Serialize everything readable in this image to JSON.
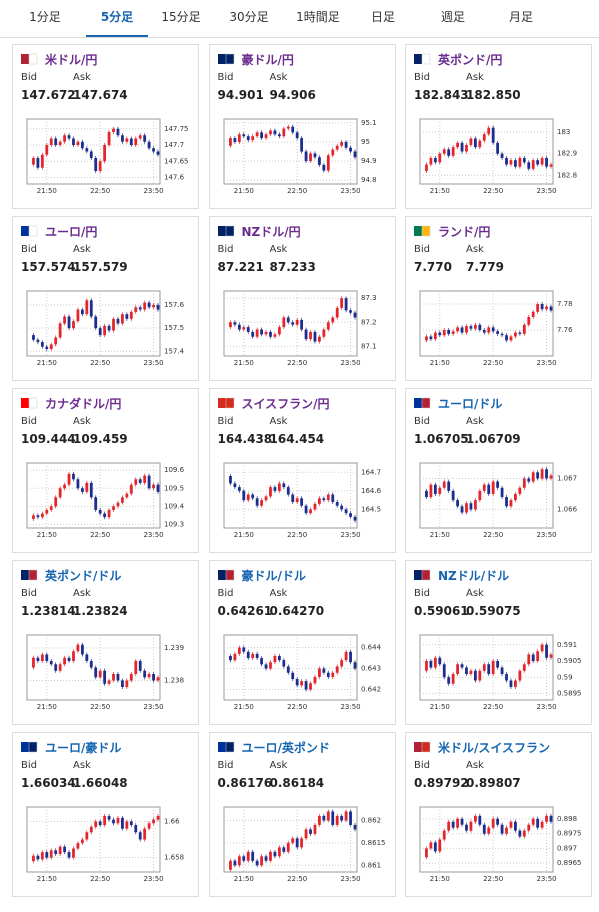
{
  "tabs": {
    "items": [
      "1分足",
      "5分足",
      "15分足",
      "30分足",
      "1時間足",
      "日足",
      "週足",
      "月足"
    ],
    "active": 1
  },
  "labels": {
    "bid": "Bid",
    "ask": "Ask"
  },
  "time_ticks": [
    "21:50",
    "22:50",
    "23:50"
  ],
  "up_color": "#e3262b",
  "down_color": "#1b2d8f",
  "cards": [
    {
      "name": "米ドル/円",
      "color": "#6b2c8f",
      "bid": "147.672",
      "ask": "147.674",
      "chart": {
        "ylim": [
          147.58,
          147.78
        ],
        "yticks": [
          147.6,
          147.65,
          147.7,
          147.75
        ],
        "closes": [
          147.64,
          147.66,
          147.63,
          147.67,
          147.7,
          147.72,
          147.7,
          147.71,
          147.73,
          147.72,
          147.7,
          147.71,
          147.69,
          147.68,
          147.66,
          147.62,
          147.65,
          147.7,
          147.74,
          147.75,
          147.73,
          147.71,
          147.72,
          147.7,
          147.72,
          147.73,
          147.71,
          147.69,
          147.68,
          147.67
        ]
      }
    },
    {
      "name": "豪ドル/円",
      "color": "#6b2c8f",
      "bid": "94.901",
      "ask": "94.906",
      "chart": {
        "ylim": [
          94.78,
          95.12
        ],
        "yticks": [
          94.8,
          94.9,
          95,
          95.1
        ],
        "closes": [
          94.98,
          95.02,
          95.0,
          95.04,
          95.03,
          95.01,
          95.03,
          95.05,
          95.02,
          95.04,
          95.06,
          95.04,
          95.03,
          95.07,
          95.08,
          95.05,
          95.02,
          94.95,
          94.9,
          94.94,
          94.92,
          94.88,
          94.85,
          94.93,
          94.96,
          94.98,
          95.0,
          94.97,
          94.95,
          94.92
        ]
      }
    },
    {
      "name": "英ポンド/円",
      "color": "#6b2c8f",
      "bid": "182.843",
      "ask": "182.850",
      "chart": {
        "ylim": [
          182.76,
          183.06
        ],
        "yticks": [
          182.8,
          182.9,
          183
        ],
        "closes": [
          182.82,
          182.85,
          182.88,
          182.86,
          182.9,
          182.92,
          182.89,
          182.93,
          182.95,
          182.91,
          182.94,
          182.97,
          182.93,
          182.96,
          182.99,
          183.02,
          182.95,
          182.9,
          182.88,
          182.85,
          182.87,
          182.84,
          182.88,
          182.86,
          182.83,
          182.87,
          182.85,
          182.88,
          182.84,
          182.85
        ]
      }
    },
    {
      "name": "ユーロ/円",
      "color": "#6b2c8f",
      "bid": "157.574",
      "ask": "157.579",
      "chart": {
        "ylim": [
          157.38,
          157.66
        ],
        "yticks": [
          157.4,
          157.5,
          157.6
        ],
        "closes": [
          157.47,
          157.45,
          157.44,
          157.42,
          157.41,
          157.43,
          157.46,
          157.52,
          157.55,
          157.5,
          157.53,
          157.58,
          157.56,
          157.62,
          157.55,
          157.5,
          157.47,
          157.51,
          157.49,
          157.54,
          157.52,
          157.56,
          157.54,
          157.57,
          157.59,
          157.58,
          157.61,
          157.59,
          157.6,
          157.58
        ]
      }
    },
    {
      "name": "NZドル/円",
      "color": "#6b2c8f",
      "bid": "87.221",
      "ask": "87.233",
      "chart": {
        "ylim": [
          87.06,
          87.33
        ],
        "yticks": [
          87.1,
          87.2,
          87.3
        ],
        "closes": [
          87.18,
          87.2,
          87.19,
          87.17,
          87.18,
          87.16,
          87.14,
          87.17,
          87.15,
          87.16,
          87.14,
          87.15,
          87.18,
          87.22,
          87.2,
          87.19,
          87.21,
          87.17,
          87.13,
          87.16,
          87.12,
          87.14,
          87.17,
          87.2,
          87.22,
          87.26,
          87.3,
          87.25,
          87.24,
          87.22
        ]
      }
    },
    {
      "name": "ランド/円",
      "color": "#6b2c8f",
      "bid": "7.770",
      "ask": "7.779",
      "chart": {
        "ylim": [
          7.74,
          7.79
        ],
        "yticks": [
          7.76,
          7.78
        ],
        "closes": [
          7.752,
          7.755,
          7.753,
          7.758,
          7.756,
          7.76,
          7.757,
          7.759,
          7.762,
          7.758,
          7.763,
          7.761,
          7.764,
          7.76,
          7.758,
          7.762,
          7.759,
          7.757,
          7.756,
          7.752,
          7.755,
          7.758,
          7.757,
          7.764,
          7.77,
          7.774,
          7.78,
          7.776,
          7.778,
          7.775
        ]
      }
    },
    {
      "name": "カナダドル/円",
      "color": "#6b2c8f",
      "bid": "109.444",
      "ask": "109.459",
      "chart": {
        "ylim": [
          109.28,
          109.64
        ],
        "yticks": [
          109.3,
          109.4,
          109.5,
          109.6
        ],
        "closes": [
          109.33,
          109.35,
          109.34,
          109.36,
          109.38,
          109.4,
          109.45,
          109.5,
          109.52,
          109.58,
          109.55,
          109.5,
          109.48,
          109.53,
          109.45,
          109.38,
          109.36,
          109.34,
          109.38,
          109.4,
          109.42,
          109.45,
          109.47,
          109.52,
          109.55,
          109.53,
          109.57,
          109.5,
          109.52,
          109.48
        ]
      }
    },
    {
      "name": "スイスフラン/円",
      "color": "#6b2c8f",
      "bid": "164.438",
      "ask": "164.454",
      "chart": {
        "ylim": [
          164.4,
          164.75
        ],
        "yticks": [
          164.5,
          164.6,
          164.7
        ],
        "closes": [
          164.68,
          164.64,
          164.62,
          164.6,
          164.55,
          164.58,
          164.56,
          164.52,
          164.55,
          164.57,
          164.62,
          164.6,
          164.64,
          164.62,
          164.58,
          164.54,
          164.56,
          164.52,
          164.48,
          164.5,
          164.53,
          164.56,
          164.55,
          164.58,
          164.54,
          164.52,
          164.5,
          164.48,
          164.46,
          164.44
        ]
      }
    },
    {
      "name": "ユーロ/ドル",
      "color": "#1565b0",
      "bid": "1.06705",
      "ask": "1.06709",
      "chart": {
        "ylim": [
          1.0654,
          1.0675
        ],
        "yticks": [
          1.066,
          1.067
        ],
        "closes": [
          1.0666,
          1.0664,
          1.0668,
          1.0665,
          1.0667,
          1.0669,
          1.0666,
          1.0663,
          1.0661,
          1.0659,
          1.0662,
          1.066,
          1.0663,
          1.0666,
          1.0668,
          1.0665,
          1.0669,
          1.0667,
          1.0664,
          1.0661,
          1.0663,
          1.0665,
          1.0667,
          1.067,
          1.0669,
          1.0672,
          1.067,
          1.0673,
          1.067,
          1.0671
        ]
      }
    },
    {
      "name": "英ポンド/ドル",
      "color": "#1565b0",
      "bid": "1.23814",
      "ask": "1.23824",
      "chart": {
        "ylim": [
          1.2374,
          1.2394
        ],
        "yticks": [
          1.238,
          1.239
        ],
        "closes": [
          1.2384,
          1.2387,
          1.2386,
          1.2388,
          1.2386,
          1.2385,
          1.2383,
          1.2385,
          1.2387,
          1.2386,
          1.2389,
          1.2391,
          1.2388,
          1.2386,
          1.2384,
          1.2381,
          1.2383,
          1.2379,
          1.238,
          1.2382,
          1.238,
          1.2378,
          1.238,
          1.2382,
          1.2386,
          1.2383,
          1.2381,
          1.2382,
          1.238,
          1.2381
        ]
      }
    },
    {
      "name": "豪ドル/ドル",
      "color": "#1565b0",
      "bid": "0.64261",
      "ask": "0.64270",
      "chart": {
        "ylim": [
          0.6415,
          0.6446
        ],
        "yticks": [
          0.642,
          0.643,
          0.644
        ],
        "closes": [
          0.6436,
          0.6434,
          0.6437,
          0.644,
          0.6438,
          0.6435,
          0.6437,
          0.6435,
          0.6432,
          0.643,
          0.6433,
          0.6436,
          0.6434,
          0.6431,
          0.6428,
          0.6425,
          0.6422,
          0.6424,
          0.642,
          0.6423,
          0.6426,
          0.643,
          0.6428,
          0.6426,
          0.6428,
          0.6431,
          0.6434,
          0.6438,
          0.6433,
          0.643
        ]
      }
    },
    {
      "name": "NZドル/ドル",
      "color": "#1565b0",
      "bid": "0.59061",
      "ask": "0.59075",
      "chart": {
        "ylim": [
          0.5893,
          0.5913
        ],
        "yticks": [
          0.5895,
          0.59,
          0.5905,
          0.591
        ],
        "closes": [
          0.5902,
          0.5905,
          0.5903,
          0.5906,
          0.5904,
          0.59,
          0.5898,
          0.5901,
          0.5904,
          0.5903,
          0.5901,
          0.5902,
          0.5899,
          0.5902,
          0.5904,
          0.5901,
          0.5905,
          0.5903,
          0.5901,
          0.5899,
          0.5897,
          0.5899,
          0.5902,
          0.5904,
          0.5907,
          0.5905,
          0.5908,
          0.591,
          0.5906,
          0.5907
        ]
      }
    },
    {
      "name": "ユーロ/豪ドル",
      "color": "#1565b0",
      "bid": "1.66034",
      "ask": "1.66048",
      "chart": {
        "ylim": [
          1.6572,
          1.6608
        ],
        "yticks": [
          1.658,
          1.66
        ],
        "closes": [
          1.6578,
          1.6581,
          1.6579,
          1.6583,
          1.658,
          1.6584,
          1.6582,
          1.6586,
          1.6583,
          1.658,
          1.6585,
          1.6588,
          1.659,
          1.6594,
          1.6597,
          1.66,
          1.6598,
          1.6603,
          1.6601,
          1.6599,
          1.6602,
          1.6596,
          1.66,
          1.6598,
          1.6594,
          1.659,
          1.6596,
          1.6599,
          1.6601,
          1.6603
        ]
      }
    },
    {
      "name": "ユーロ/英ポンド",
      "color": "#1565b0",
      "bid": "0.86176",
      "ask": "0.86184",
      "chart": {
        "ylim": [
          0.86085,
          0.8623
        ],
        "yticks": [
          0.861,
          0.8615,
          0.862
        ],
        "closes": [
          0.8609,
          0.8611,
          0.861,
          0.8612,
          0.8611,
          0.8613,
          0.8611,
          0.861,
          0.8612,
          0.8611,
          0.8613,
          0.8612,
          0.8614,
          0.8613,
          0.8615,
          0.8616,
          0.8614,
          0.8616,
          0.8618,
          0.8617,
          0.8619,
          0.8621,
          0.862,
          0.8622,
          0.8619,
          0.8621,
          0.862,
          0.8622,
          0.8619,
          0.8618
        ]
      }
    },
    {
      "name": "米ドル/スイスフラン",
      "color": "#1565b0",
      "bid": "0.89792",
      "ask": "0.89807",
      "chart": {
        "ylim": [
          0.8962,
          0.8984
        ],
        "yticks": [
          0.8965,
          0.897,
          0.8975,
          0.898
        ],
        "closes": [
          0.8967,
          0.897,
          0.8972,
          0.8969,
          0.8973,
          0.8976,
          0.8979,
          0.8977,
          0.898,
          0.8978,
          0.8976,
          0.8979,
          0.8981,
          0.8978,
          0.8975,
          0.8977,
          0.898,
          0.8978,
          0.8975,
          0.8977,
          0.8979,
          0.8976,
          0.8974,
          0.8976,
          0.8978,
          0.898,
          0.8977,
          0.8979,
          0.8981,
          0.8979
        ]
      }
    }
  ]
}
